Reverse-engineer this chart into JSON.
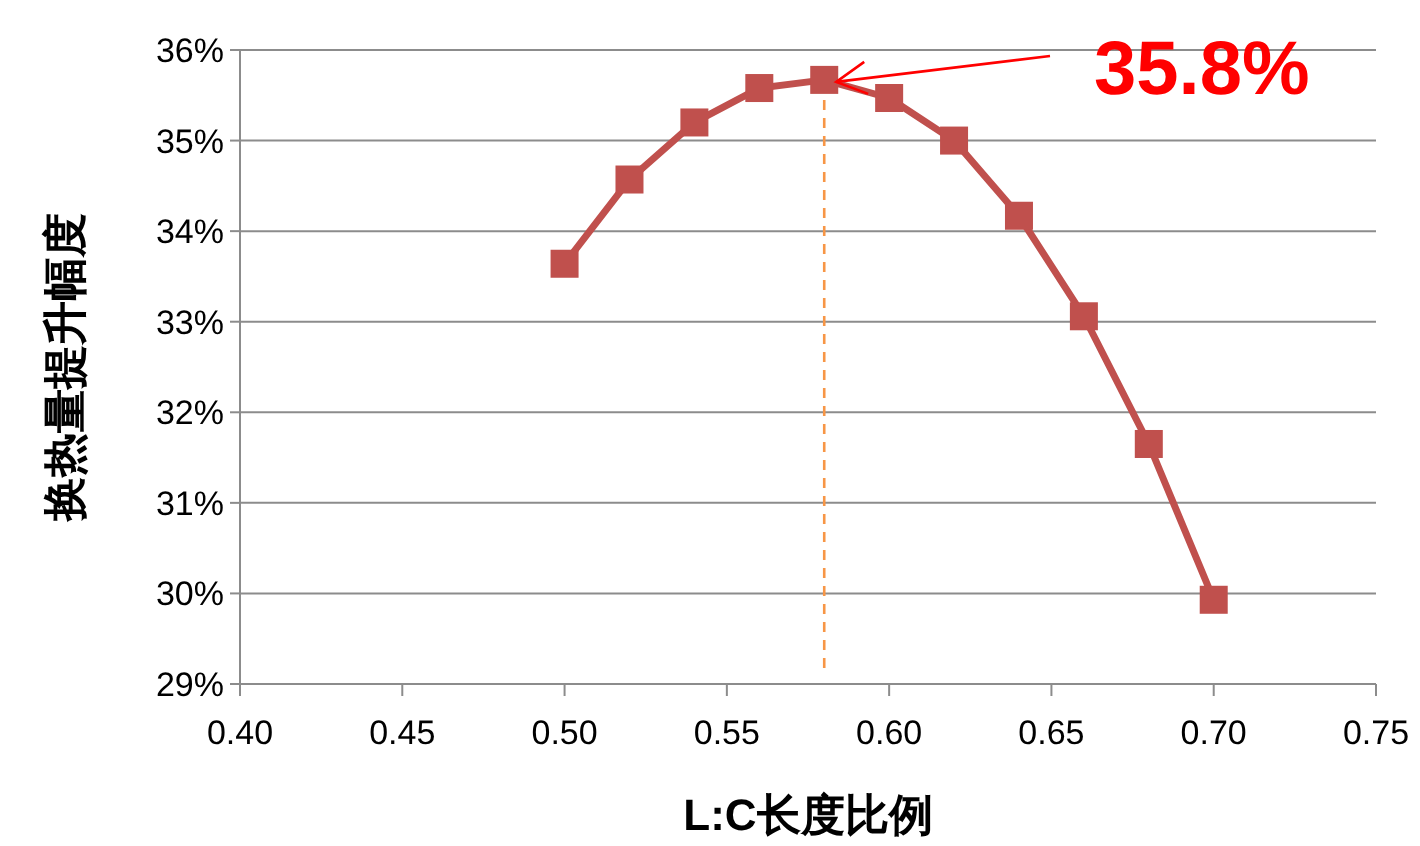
{
  "chart_data": {
    "type": "line",
    "xlabel": "L:C长度比例",
    "ylabel": "换热量提升幅度",
    "xlim": [
      0.4,
      0.75
    ],
    "ylim": [
      29,
      36
    ],
    "xticks": [
      {
        "value": 0.4,
        "label": "0.40"
      },
      {
        "value": 0.45,
        "label": "0.45"
      },
      {
        "value": 0.5,
        "label": "0.50"
      },
      {
        "value": 0.55,
        "label": "0.55"
      },
      {
        "value": 0.6,
        "label": "0.60"
      },
      {
        "value": 0.65,
        "label": "0.65"
      },
      {
        "value": 0.7,
        "label": "0.70"
      },
      {
        "value": 0.75,
        "label": "0.75"
      }
    ],
    "yticks": [
      {
        "value": 29,
        "label": "29%"
      },
      {
        "value": 30,
        "label": "30%"
      },
      {
        "value": 31,
        "label": "31%"
      },
      {
        "value": 32,
        "label": "32%"
      },
      {
        "value": 33,
        "label": "33%"
      },
      {
        "value": 34,
        "label": "34%"
      },
      {
        "value": 35,
        "label": "35%"
      },
      {
        "value": 36,
        "label": "36%"
      }
    ],
    "grid": "y",
    "marker": "square",
    "line_style": "solid",
    "series": [
      {
        "color": "#c0504d",
        "x": [
          0.5,
          0.52,
          0.54,
          0.56,
          0.58,
          0.6,
          0.62,
          0.64,
          0.66,
          0.68,
          0.7
        ],
        "values": [
          33.64,
          34.57,
          35.2,
          35.58,
          35.67,
          35.47,
          35.0,
          34.17,
          33.06,
          31.65,
          29.93
        ]
      }
    ],
    "ref_lines": [
      {
        "axis": "x",
        "value": 0.58,
        "color": "#f79646",
        "line_style": "dashed"
      }
    ],
    "annotations": [
      {
        "text": "35.8%",
        "x": 0.58,
        "y": 35.67
      }
    ]
  }
}
